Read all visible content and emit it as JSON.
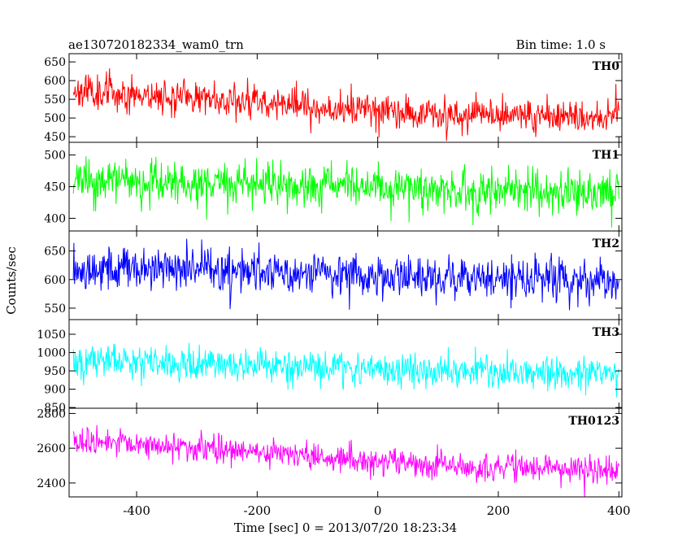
{
  "header": {
    "title": "ae130720182334_wam0_trn",
    "bin_time": "Bin time: 1.0 s"
  },
  "chart_data": {
    "type": "line",
    "xlabel": "Time [sec] 0 = 2013/07/20 18:23:34",
    "ylabel": "Counts/sec",
    "xlim": [
      -512,
      405
    ],
    "x_ticks": [
      -400,
      -200,
      0,
      200,
      400
    ],
    "grid": false,
    "panels": [
      {
        "label": "TH0",
        "color": "#ff0000",
        "ylim": [
          435,
          672
        ],
        "y_ticks": [
          450,
          500,
          550,
          600,
          650
        ],
        "trend": {
          "x": [
            -500,
            -400,
            -300,
            -200,
            -100,
            0,
            100,
            200,
            300,
            400
          ],
          "y": [
            575,
            565,
            555,
            545,
            530,
            520,
            512,
            508,
            505,
            500
          ]
        },
        "noise": 38,
        "seed": 11
      },
      {
        "label": "TH1",
        "color": "#00ff00",
        "ylim": [
          380,
          520
        ],
        "y_ticks": [
          400,
          450,
          500
        ],
        "trend": {
          "x": [
            -500,
            -300,
            -100,
            100,
            300,
            400
          ],
          "y": [
            458,
            455,
            450,
            446,
            443,
            442
          ]
        },
        "noise": 28,
        "seed": 23
      },
      {
        "label": "TH2",
        "color": "#0000ff",
        "ylim": [
          530,
          685
        ],
        "y_ticks": [
          550,
          600,
          650
        ],
        "trend": {
          "x": [
            -500,
            -300,
            -100,
            100,
            300,
            400
          ],
          "y": [
            620,
            618,
            612,
            605,
            600,
            598
          ]
        },
        "noise": 32,
        "seed": 37
      },
      {
        "label": "TH3",
        "color": "#00ffff",
        "ylim": [
          848,
          1090
        ],
        "y_ticks": [
          850,
          900,
          950,
          1000,
          1050
        ],
        "trend": {
          "x": [
            -500,
            -300,
            -100,
            100,
            300,
            400
          ],
          "y": [
            975,
            968,
            958,
            950,
            945,
            942
          ]
        },
        "noise": 38,
        "seed": 51
      },
      {
        "label": "TH0123",
        "color": "#ff00ff",
        "ylim": [
          2320,
          2830
        ],
        "y_ticks": [
          2400,
          2600,
          2800
        ],
        "trend": {
          "x": [
            -500,
            -400,
            -300,
            -200,
            -100,
            0,
            100,
            200,
            300,
            400
          ],
          "y": [
            2640,
            2625,
            2600,
            2580,
            2555,
            2525,
            2505,
            2490,
            2480,
            2470
          ]
        },
        "noise": 65,
        "seed": 73
      }
    ]
  }
}
